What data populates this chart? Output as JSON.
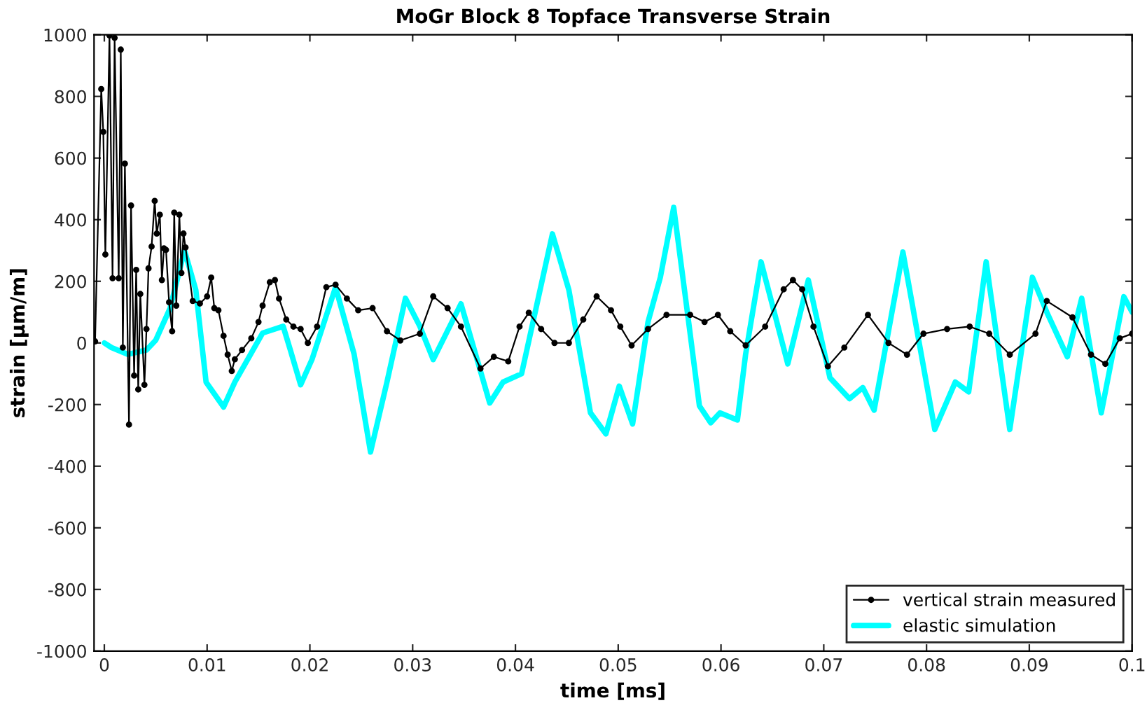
{
  "chart_data": {
    "type": "line",
    "title": "MoGr Block 8 Topface Transverse Strain",
    "xlabel": "time [ms]",
    "ylabel": "strain [μm/m]",
    "xlim": [
      -0.001,
      0.1
    ],
    "xticks": [
      0,
      0.01,
      0.02,
      0.03,
      0.04,
      0.05,
      0.06,
      0.07,
      0.08,
      0.09,
      0.1
    ],
    "ylim": [
      -1000,
      1000
    ],
    "yticks": [
      -1000,
      -800,
      -600,
      -400,
      -200,
      0,
      200,
      400,
      600,
      800,
      1000
    ],
    "grid": false,
    "legend": "bottom right",
    "series": [
      {
        "name": "vertical strain measured",
        "color": "#000000",
        "marker": "circle",
        "x": [
          -0.0009,
          -0.0003,
          -0.0001,
          0.0001,
          0.0005,
          0.0008,
          0.001,
          0.0014,
          0.0016,
          0.0018,
          0.002,
          0.0024,
          0.0026,
          0.0029,
          0.0031,
          0.0033,
          0.0035,
          0.0039,
          0.0041,
          0.0043,
          0.0046,
          0.0049,
          0.0051,
          0.0054,
          0.0056,
          0.0058,
          0.006,
          0.0063,
          0.0066,
          0.0068,
          0.007,
          0.0073,
          0.0075,
          0.0077,
          0.0079,
          0.0086,
          0.0093,
          0.01,
          0.0104,
          0.0107,
          0.0111,
          0.0116,
          0.012,
          0.0124,
          0.0127,
          0.0134,
          0.0143,
          0.015,
          0.0154,
          0.0161,
          0.0166,
          0.017,
          0.0177,
          0.0184,
          0.0191,
          0.0198,
          0.0207,
          0.0216,
          0.0225,
          0.0236,
          0.0247,
          0.0261,
          0.0275,
          0.0288,
          0.0307,
          0.032,
          0.0334,
          0.0347,
          0.0366,
          0.0379,
          0.0393,
          0.0404,
          0.0413,
          0.0425,
          0.0438,
          0.0452,
          0.0466,
          0.0479,
          0.0493,
          0.0502,
          0.0513,
          0.0529,
          0.0547,
          0.057,
          0.0584,
          0.0597,
          0.0609,
          0.0624,
          0.0643,
          0.0661,
          0.067,
          0.0679,
          0.069,
          0.0704,
          0.072,
          0.0743,
          0.0763,
          0.0781,
          0.0797,
          0.082,
          0.0842,
          0.0861,
          0.0881,
          0.0906,
          0.0917,
          0.0942,
          0.096,
          0.0974,
          0.0988,
          0.1
        ],
        "values": [
          5,
          824,
          685,
          287,
          998,
          210,
          990,
          210,
          952,
          -15,
          582,
          -265,
          446,
          -106,
          237,
          -151,
          159,
          -136,
          45,
          242,
          313,
          461,
          355,
          416,
          204,
          307,
          302,
          132,
          38,
          423,
          121,
          416,
          227,
          355,
          310,
          136,
          128,
          151,
          212,
          113,
          106,
          23,
          -38,
          -91,
          -53,
          -23,
          15,
          68,
          121,
          197,
          204,
          144,
          76,
          53,
          45,
          0,
          53,
          181,
          189,
          144,
          106,
          113,
          38,
          8,
          30,
          151,
          113,
          53,
          -83,
          -45,
          -60,
          53,
          98,
          45,
          0,
          0,
          76,
          151,
          106,
          53,
          -8,
          45,
          91,
          91,
          68,
          91,
          38,
          -8,
          53,
          174,
          204,
          174,
          53,
          -76,
          -15,
          91,
          0,
          -38,
          30,
          45,
          53,
          30,
          -38,
          30,
          136,
          83,
          -38,
          -68,
          15,
          30
        ]
      },
      {
        "name": "elastic simulation",
        "color": "#00ffff",
        "marker": "none",
        "x": [
          0,
          0.0007,
          0.0023,
          0.0041,
          0.005,
          0.0064,
          0.0078,
          0.0089,
          0.0099,
          0.0116,
          0.0127,
          0.0154,
          0.0174,
          0.0181,
          0.0191,
          0.0202,
          0.0225,
          0.0243,
          0.0259,
          0.0275,
          0.0293,
          0.0307,
          0.032,
          0.0347,
          0.0375,
          0.0388,
          0.0406,
          0.0436,
          0.0452,
          0.0473,
          0.0488,
          0.0501,
          0.0514,
          0.0529,
          0.0541,
          0.0554,
          0.0568,
          0.0579,
          0.059,
          0.0599,
          0.0616,
          0.0624,
          0.0639,
          0.0665,
          0.0685,
          0.0706,
          0.0725,
          0.0738,
          0.0749,
          0.0777,
          0.0808,
          0.0828,
          0.0841,
          0.0858,
          0.0881,
          0.0903,
          0.0917,
          0.0937,
          0.0951,
          0.097,
          0.0992,
          0.1
        ],
        "values": [
          0,
          -15,
          -37,
          -23,
          9,
          113,
          300,
          172,
          -127,
          -208,
          -127,
          32,
          54,
          -23,
          -136,
          -54,
          181,
          -36,
          -354,
          -127,
          145,
          54,
          -54,
          127,
          -195,
          -127,
          -100,
          354,
          172,
          -227,
          -295,
          -140,
          -263,
          68,
          213,
          440,
          82,
          -204,
          -259,
          -227,
          -250,
          -36,
          263,
          -68,
          204,
          -113,
          -181,
          -145,
          -218,
          295,
          -281,
          -127,
          -159,
          263,
          -281,
          213,
          100,
          -45,
          145,
          -227,
          150,
          100
        ]
      }
    ]
  }
}
